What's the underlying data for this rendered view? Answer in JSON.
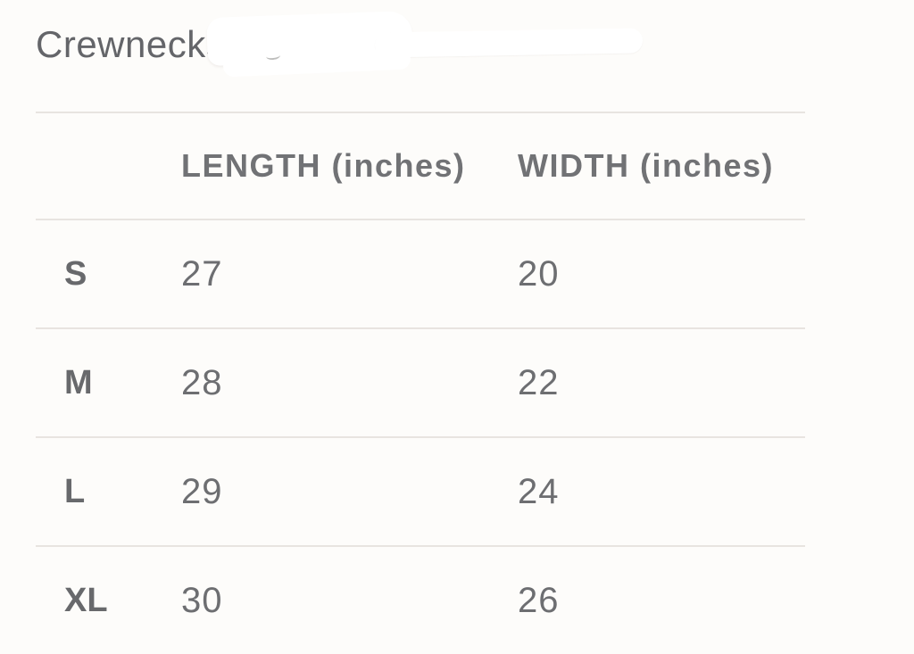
{
  "page": {
    "title": "Crewnecks",
    "background_color": "#fdfcfa",
    "divider_color": "#e8e4e0",
    "text_color": "#6b6c6f"
  },
  "chart_data": {
    "type": "table",
    "title": "Crewnecks",
    "columns": [
      "",
      "LENGTH (inches)",
      "WIDTH (inches)"
    ],
    "rows": [
      {
        "size": "S",
        "length": "27",
        "width": "20"
      },
      {
        "size": "M",
        "length": "28",
        "width": "22"
      },
      {
        "size": "L",
        "length": "29",
        "width": "24"
      },
      {
        "size": "XL",
        "length": "30",
        "width": "26"
      }
    ]
  }
}
